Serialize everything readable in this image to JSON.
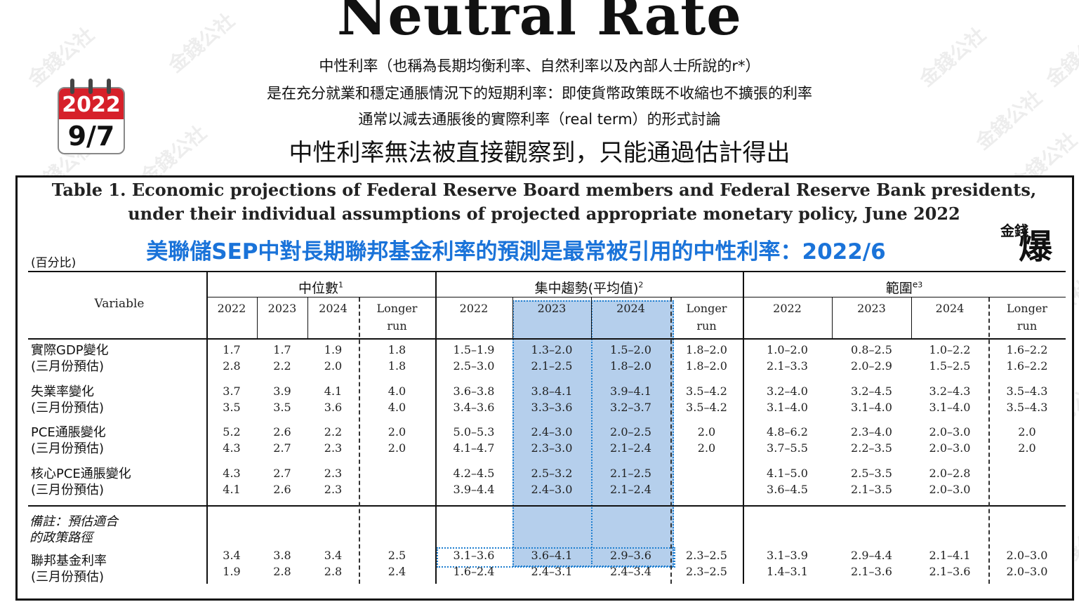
{
  "title": "Neutral Rate",
  "subtitle_lines": [
    "中性利率（也稱為長期均衡利率、自然利率以及內部人士所說的r*）",
    "是在充分就業和穩定通脹情況下的短期利率：即使貨幣政策既不收縮也不擴張的利率",
    "通常以減去通脹後的實際利率（real term）的形式討論",
    "中性利率無法被直接觀察到，只能通過估計得出"
  ],
  "calendar": {
    "year": "2022",
    "date": "9/7",
    "color": "#d6202a"
  },
  "table": {
    "caption_line1": "Table 1. Economic projections of Federal Reserve Board members and Federal Reserve Bank presidents,",
    "caption_line2": "under their individual assumptions of projected appropriate monetary policy, June 2022",
    "highlight_caption": "美聯儲SEP中對長期聯邦基金利率的預測是最常被引用的中性利率：2022/6",
    "unit_note": "(百分比)",
    "variable_header": "Variable",
    "groups": [
      "中位數",
      "集中趨勢(平均值)",
      "範圍"
    ],
    "group_superscripts": [
      "1",
      "2",
      "3"
    ],
    "range_prefix": "e",
    "col_headers": [
      "2022",
      "2023",
      "2024",
      "Longer",
      "2022",
      "2023",
      "2024",
      "Longer",
      "2022",
      "2023",
      "2024",
      "Longer"
    ],
    "col_subheaders": [
      "",
      "",
      "",
      "run",
      "",
      "",
      "",
      "run",
      "",
      "",
      "",
      "run"
    ],
    "rows": [
      {
        "label1": "實際GDP變化",
        "label2": "(三月份預估)",
        "line1": [
          "1.7",
          "1.7",
          "1.9",
          "1.8",
          "1.5–1.9",
          "1.3–2.0",
          "1.5–2.0",
          "1.8–2.0",
          "1.0–2.0",
          "0.8–2.5",
          "1.0–2.2",
          "1.6–2.2"
        ],
        "line2": [
          "2.8",
          "2.2",
          "2.0",
          "1.8",
          "2.5–3.0",
          "2.1–2.5",
          "1.8–2.0",
          "1.8–2.0",
          "2.1–3.3",
          "2.0–2.9",
          "1.5–2.5",
          "1.6–2.2"
        ]
      },
      {
        "label1": "失業率變化",
        "label2": "(三月份預估)",
        "line1": [
          "3.7",
          "3.9",
          "4.1",
          "4.0",
          "3.6–3.8",
          "3.8–4.1",
          "3.9–4.1",
          "3.5–4.2",
          "3.2–4.0",
          "3.2–4.5",
          "3.2–4.3",
          "3.5–4.3"
        ],
        "line2": [
          "3.5",
          "3.5",
          "3.6",
          "4.0",
          "3.4–3.6",
          "3.3–3.6",
          "3.2–3.7",
          "3.5–4.2",
          "3.1–4.0",
          "3.1–4.0",
          "3.1–4.0",
          "3.5–4.3"
        ]
      },
      {
        "label1": "PCE通脹變化",
        "label2": "(三月份預估)",
        "line1": [
          "5.2",
          "2.6",
          "2.2",
          "2.0",
          "5.0–5.3",
          "2.4–3.0",
          "2.0–2.5",
          "2.0",
          "4.8–6.2",
          "2.3–4.0",
          "2.0–3.0",
          "2.0"
        ],
        "line2": [
          "4.3",
          "2.7",
          "2.3",
          "2.0",
          "4.1–4.7",
          "2.3–3.0",
          "2.1–2.4",
          "2.0",
          "3.7–5.5",
          "2.2–3.5",
          "2.0–3.0",
          "2.0"
        ]
      },
      {
        "label1": "核心PCE通脹變化",
        "label2": "(三月份預估)",
        "line1": [
          "4.3",
          "2.7",
          "2.3",
          "",
          "4.2–4.5",
          "2.5–3.2",
          "2.1–2.5",
          "",
          "4.1–5.0",
          "2.5–3.5",
          "2.0–2.8",
          ""
        ],
        "line2": [
          "4.1",
          "2.6",
          "2.3",
          "",
          "3.9–4.4",
          "2.4–3.0",
          "2.1–2.4",
          "",
          "3.6–4.5",
          "2.1–3.5",
          "2.0–3.0",
          ""
        ]
      }
    ],
    "note_line1": "備註：預估適合",
    "note_line2": "的政策路徑",
    "fed_row": {
      "label1": "聯邦基金利率",
      "label2": "(三月份預估)",
      "line1": [
        "3.4",
        "3.8",
        "3.4",
        "2.5",
        "3.1–3.6",
        "3.6–4.1",
        "2.9–3.6",
        "2.3–2.5",
        "3.1–3.9",
        "2.9–4.4",
        "2.1–4.1",
        "2.0–3.0"
      ],
      "line2": [
        "1.9",
        "2.8",
        "2.8",
        "2.4",
        "1.6–2.4",
        "2.4–3.1",
        "2.4–3.4",
        "2.3–2.5",
        "1.4–3.1",
        "2.1–3.6",
        "2.1–3.6",
        "2.0–3.0"
      ]
    }
  },
  "logo_text": {
    "small": "金錢",
    "big": "爆"
  },
  "watermark": "金錢公社",
  "highlight_color": "#1f7fd0"
}
